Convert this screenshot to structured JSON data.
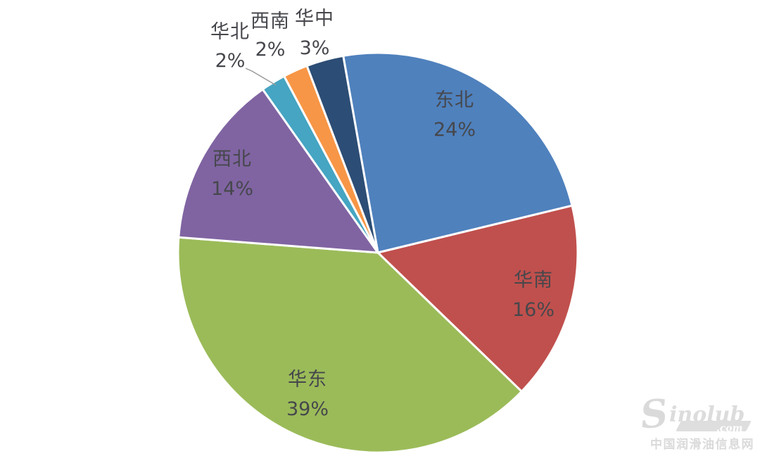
{
  "chart_data": {
    "type": "pie",
    "title": "",
    "legend": "none",
    "direction": "clockwise",
    "start_angle_deg": -10,
    "label_style": "category name + percent, inside large slices / outside with leader line for small slices",
    "slices": [
      {
        "key": "northeast",
        "label": "东北",
        "value": 24,
        "pct_label": "24%",
        "color": "#4F81BD",
        "label_placement": "inside"
      },
      {
        "key": "south-china",
        "label": "华南",
        "value": 16,
        "pct_label": "16%",
        "color": "#C0504D",
        "label_placement": "inside"
      },
      {
        "key": "east-china",
        "label": "华东",
        "value": 39,
        "pct_label": "39%",
        "color": "#9BBB59",
        "label_placement": "inside"
      },
      {
        "key": "northwest",
        "label": "西北",
        "value": 14,
        "pct_label": "14%",
        "color": "#8064A2",
        "label_placement": "inside"
      },
      {
        "key": "north-china",
        "label": "华北",
        "value": 2,
        "pct_label": "2%",
        "color": "#45A5C2",
        "label_placement": "outside-with-leader-line"
      },
      {
        "key": "southwest",
        "label": "西南",
        "value": 2,
        "pct_label": "2%",
        "color": "#F79646",
        "label_placement": "outside"
      },
      {
        "key": "central-china",
        "label": "华中",
        "value": 3,
        "pct_label": "3%",
        "color": "#2C4D75",
        "label_placement": "outside"
      }
    ],
    "slice_border_color": "#ffffff",
    "label_text_color": "#46474c"
  },
  "watermark": {
    "logo_initial": "S",
    "logo_rest": "inolub",
    "logo_domain": ".com",
    "caption": "中国润滑油信息网",
    "color": "#d9d9d9"
  }
}
